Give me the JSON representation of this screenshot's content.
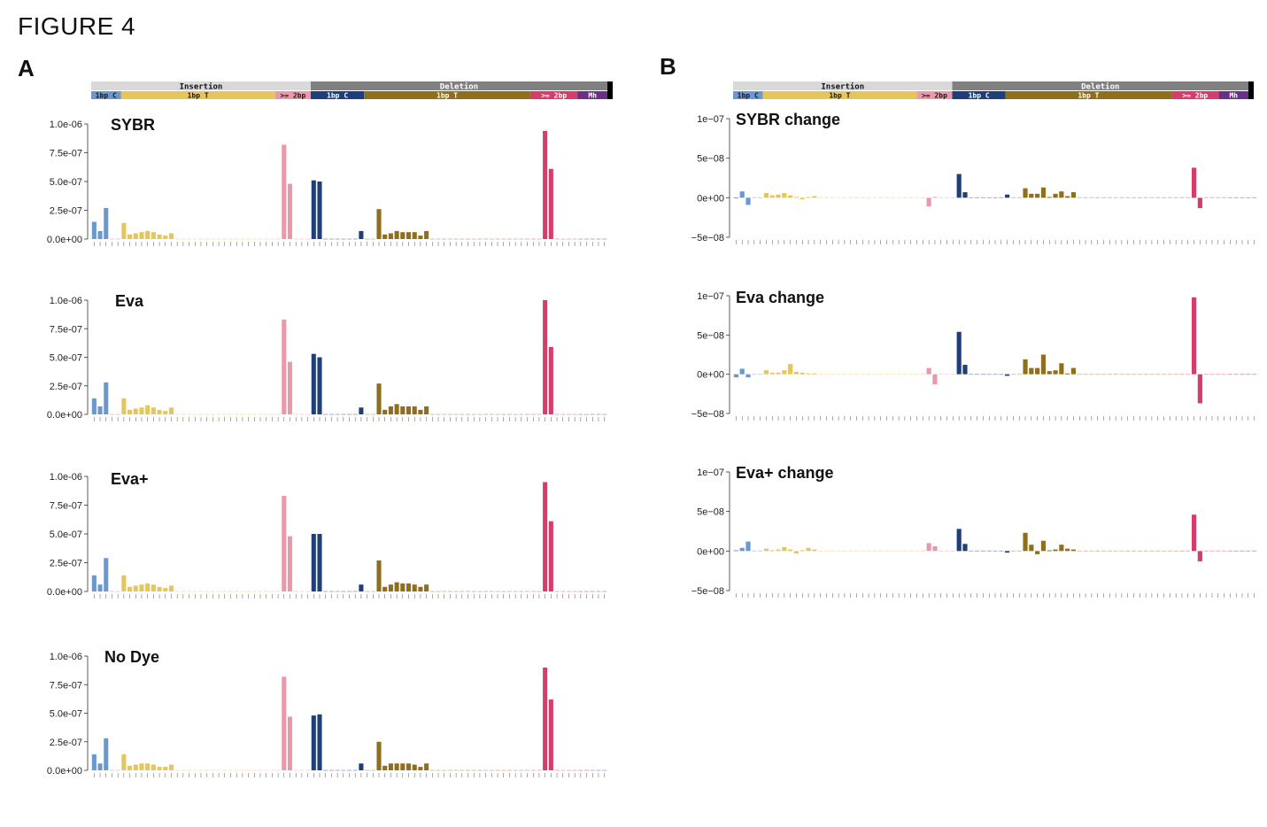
{
  "figure_title": "FIGURE 4",
  "panels": [
    "A",
    "B"
  ],
  "header": {
    "groups": [
      {
        "label": "Insertion",
        "color": "#d9d9d9"
      },
      {
        "label": "Deletion",
        "color": "#808080"
      }
    ],
    "subgroups": [
      {
        "label": "1bp C",
        "color": "#6b98cf",
        "text_color": "#1a1a1a"
      },
      {
        "label": "1bp T",
        "color": "#e6c55b",
        "text_color": "#1a1a1a"
      },
      {
        "label": ">= 2bp",
        "color": "#e89aaa",
        "text_color": "#1a1a1a"
      },
      {
        "label": "1bp C",
        "color": "#1f3f7a",
        "text_color": "#ffffff"
      },
      {
        "label": "1bp T",
        "color": "#8f6e1c",
        "text_color": "#ffffff"
      },
      {
        "label": ">= 2bp",
        "color": "#d63d6b",
        "text_color": "#ffffff"
      },
      {
        "label": "Mh",
        "color": "#6a2f86",
        "text_color": "#ffffff"
      }
    ]
  },
  "colors": {
    "cat_1bp_C_ins": "#6b98cf",
    "cat_1bp_T_ins": "#e6c55b",
    "cat_2bp_ins": "#e89aaa",
    "cat_1bp_C_del": "#1f3f7a",
    "cat_1bp_T_del": "#8f6e1c",
    "cat_2bp_del": "#d63d6b",
    "cat_mh": "#6a2f86",
    "axis": "#333333"
  },
  "chart_data": [
    {
      "type": "bar",
      "panel": "A",
      "title": "SYBR",
      "yticks": [
        "0.0e+00",
        "2.5e-07",
        "5.0e-07",
        "7.5e-07",
        "1.0e-06"
      ],
      "ylim": [
        0,
        1e-06
      ],
      "values": [
        1.5e-07,
        7e-08,
        2.7e-07,
        0,
        0,
        1.4e-07,
        4e-08,
        5e-08,
        6e-08,
        7e-08,
        6e-08,
        4e-08,
        3e-08,
        5e-08,
        0,
        0,
        0,
        0,
        0,
        0,
        0,
        0,
        0,
        0,
        0,
        0,
        0,
        0,
        0,
        0,
        0,
        0,
        8.2e-07,
        4.8e-07,
        0,
        0,
        0,
        5.1e-07,
        5e-07,
        0,
        0,
        0,
        0,
        0,
        0,
        7e-08,
        0,
        0,
        2.6e-07,
        4e-08,
        5e-08,
        7e-08,
        6e-08,
        6e-08,
        6e-08,
        3e-08,
        7e-08,
        0,
        0,
        0,
        0,
        0,
        0,
        0,
        0,
        0,
        0,
        0,
        0,
        0,
        0,
        0,
        0,
        0,
        0,
        0,
        9.4e-07,
        6.1e-07,
        0,
        0,
        0,
        0,
        0,
        0,
        0,
        0,
        0,
        0,
        0
      ]
    },
    {
      "type": "bar",
      "panel": "A",
      "title": "Eva",
      "yticks": [
        "0.0e+00",
        "2.5e-07",
        "5.0e-07",
        "7.5e-07",
        "1.0e-06"
      ],
      "ylim": [
        0,
        1e-06
      ],
      "values": [
        1.4e-07,
        7e-08,
        2.8e-07,
        0,
        0,
        1.4e-07,
        4e-08,
        5e-08,
        6e-08,
        8e-08,
        6e-08,
        4e-08,
        3e-08,
        6e-08,
        0,
        0,
        0,
        0,
        0,
        0,
        0,
        0,
        0,
        0,
        0,
        0,
        0,
        0,
        0,
        0,
        0,
        0,
        8.3e-07,
        4.6e-07,
        0,
        0,
        0,
        5.3e-07,
        5e-07,
        0,
        0,
        0,
        0,
        0,
        0,
        6e-08,
        0,
        0,
        2.7e-07,
        4e-08,
        7e-08,
        9e-08,
        7e-08,
        7e-08,
        7e-08,
        4e-08,
        7e-08,
        0,
        0,
        0,
        0,
        0,
        0,
        0,
        0,
        0,
        0,
        0,
        0,
        0,
        0,
        0,
        0,
        0,
        0,
        0,
        1e-06,
        5.9e-07,
        0,
        0,
        0,
        0,
        0,
        0,
        0,
        0,
        0,
        0,
        0
      ]
    },
    {
      "type": "bar",
      "panel": "A",
      "title": "Eva+",
      "yticks": [
        "0.0e+00",
        "2.5e-07",
        "5.0e-07",
        "7.5e-07",
        "1.0e-06"
      ],
      "ylim": [
        0,
        1e-06
      ],
      "values": [
        1.4e-07,
        6e-08,
        2.9e-07,
        0,
        0,
        1.4e-07,
        4e-08,
        5e-08,
        6e-08,
        7e-08,
        6e-08,
        4e-08,
        3e-08,
        5e-08,
        0,
        0,
        0,
        0,
        0,
        0,
        0,
        0,
        0,
        0,
        0,
        0,
        0,
        0,
        0,
        0,
        0,
        0,
        8.3e-07,
        4.8e-07,
        0,
        0,
        0,
        5e-07,
        5e-07,
        0,
        0,
        0,
        0,
        0,
        0,
        6e-08,
        0,
        0,
        2.7e-07,
        4e-08,
        6e-08,
        8e-08,
        7e-08,
        7e-08,
        6e-08,
        4e-08,
        6e-08,
        0,
        0,
        0,
        0,
        0,
        0,
        0,
        0,
        0,
        0,
        0,
        0,
        0,
        0,
        0,
        0,
        0,
        0,
        0,
        9.5e-07,
        6.1e-07,
        0,
        0,
        0,
        0,
        0,
        0,
        0,
        0,
        0,
        0,
        0
      ]
    },
    {
      "type": "bar",
      "panel": "A",
      "title": "No Dye",
      "yticks": [
        "0.0e+00",
        "2.5e-07",
        "5.0e-07",
        "7.5e-07",
        "1.0e-06"
      ],
      "ylim": [
        0,
        1e-06
      ],
      "values": [
        1.4e-07,
        6e-08,
        2.8e-07,
        0,
        0,
        1.4e-07,
        4e-08,
        5e-08,
        6e-08,
        6e-08,
        5e-08,
        3e-08,
        3e-08,
        5e-08,
        0,
        0,
        0,
        0,
        0,
        0,
        0,
        0,
        0,
        0,
        0,
        0,
        0,
        0,
        0,
        0,
        0,
        0,
        8.2e-07,
        4.7e-07,
        0,
        0,
        0,
        4.8e-07,
        4.9e-07,
        0,
        0,
        0,
        0,
        0,
        0,
        6e-08,
        0,
        0,
        2.5e-07,
        4e-08,
        6e-08,
        6e-08,
        6e-08,
        6e-08,
        5e-08,
        3e-08,
        6e-08,
        0,
        0,
        0,
        0,
        0,
        0,
        0,
        0,
        0,
        0,
        0,
        0,
        0,
        0,
        0,
        0,
        0,
        0,
        0,
        9e-07,
        6.2e-07,
        0,
        0,
        0,
        0,
        0,
        0,
        0,
        0,
        0,
        0,
        0
      ]
    },
    {
      "type": "bar",
      "panel": "B",
      "title": "SYBR change",
      "yticks": [
        "−5e−08",
        "0e+00",
        "5e−08",
        "1e−07"
      ],
      "ylim": [
        -5e-08,
        1e-07
      ],
      "values": [
        5e-10,
        8e-09,
        -9e-09,
        0,
        0,
        6e-09,
        3e-09,
        4e-09,
        6e-09,
        3e-09,
        1e-09,
        -2e-09,
        1e-09,
        2e-09,
        0,
        0,
        0,
        0,
        0,
        0,
        0,
        0,
        0,
        0,
        0,
        0,
        0,
        0,
        0,
        0,
        0,
        0,
        -1.1e-08,
        1e-09,
        0,
        0,
        0,
        3e-08,
        7e-09,
        0,
        0,
        0,
        0,
        0,
        0,
        4e-09,
        0,
        0,
        1.2e-08,
        5e-09,
        5e-09,
        1.3e-08,
        1e-09,
        5e-09,
        8e-09,
        2e-09,
        7e-09,
        0,
        0,
        0,
        0,
        0,
        0,
        0,
        0,
        0,
        0,
        0,
        0,
        0,
        0,
        0,
        0,
        0,
        0,
        0,
        3.8e-08,
        -1.3e-08,
        0,
        0,
        0,
        0,
        0,
        0,
        0,
        0,
        0,
        0,
        0
      ]
    },
    {
      "type": "bar",
      "panel": "B",
      "title": "Eva change",
      "yticks": [
        "−5e−08",
        "0e+00",
        "5e−08",
        "1e−07"
      ],
      "ylim": [
        -5e-08,
        1e-07
      ],
      "values": [
        -4e-09,
        7e-09,
        -4e-09,
        0,
        0,
        5e-09,
        2e-09,
        2e-09,
        5e-09,
        1.3e-08,
        3e-09,
        2e-09,
        1e-09,
        1e-09,
        0,
        0,
        0,
        0,
        0,
        0,
        0,
        0,
        0,
        0,
        0,
        0,
        0,
        0,
        0,
        0,
        0,
        0,
        8e-09,
        -1.3e-08,
        0,
        0,
        0,
        5.4e-08,
        1.2e-08,
        0,
        0,
        0,
        0,
        0,
        0,
        -2e-09,
        0,
        0,
        1.9e-08,
        8e-09,
        8e-09,
        2.5e-08,
        4e-09,
        5e-09,
        1.4e-08,
        1e-09,
        8e-09,
        0,
        0,
        0,
        0,
        0,
        0,
        0,
        0,
        0,
        0,
        0,
        0,
        0,
        0,
        0,
        0,
        0,
        0,
        0,
        9.8e-08,
        -3.7e-08,
        0,
        0,
        0,
        0,
        0,
        0,
        0,
        0,
        0,
        0,
        0
      ]
    },
    {
      "type": "bar",
      "panel": "B",
      "title": "Eva+ change",
      "yticks": [
        "−5e−08",
        "0e+00",
        "5e−08",
        "1e−07"
      ],
      "ylim": [
        -5e-08,
        1e-07
      ],
      "values": [
        1e-09,
        4e-09,
        1.2e-08,
        0,
        0,
        3e-09,
        1e-09,
        2e-09,
        5e-09,
        2e-09,
        -3e-09,
        1e-09,
        4e-09,
        2e-09,
        0,
        0,
        0,
        0,
        0,
        0,
        0,
        0,
        0,
        0,
        0,
        0,
        0,
        0,
        0,
        0,
        0,
        0,
        1e-08,
        6e-09,
        0,
        0,
        0,
        2.8e-08,
        9e-09,
        0,
        0,
        0,
        0,
        0,
        0,
        -2e-09,
        0,
        0,
        2.3e-08,
        8e-09,
        -4e-09,
        1.3e-08,
        1e-09,
        2e-09,
        8e-09,
        3e-09,
        2e-09,
        0,
        0,
        0,
        0,
        0,
        0,
        0,
        0,
        0,
        0,
        0,
        0,
        0,
        0,
        0,
        0,
        0,
        0,
        0,
        4.6e-08,
        -1.3e-08,
        0,
        0,
        0,
        0,
        0,
        0,
        0,
        0,
        0,
        0,
        0
      ]
    }
  ],
  "category_colors": [
    "cat_1bp_C_ins",
    "cat_1bp_C_ins",
    "cat_1bp_C_ins",
    "cat_1bp_C_ins",
    "cat_1bp_C_ins",
    "cat_1bp_T_ins",
    "cat_1bp_T_ins",
    "cat_1bp_T_ins",
    "cat_1bp_T_ins",
    "cat_1bp_T_ins",
    "cat_1bp_T_ins",
    "cat_1bp_T_ins",
    "cat_1bp_T_ins",
    "cat_1bp_T_ins",
    "cat_1bp_T_ins",
    "cat_1bp_T_ins",
    "cat_1bp_T_ins",
    "cat_1bp_T_ins",
    "cat_1bp_T_ins",
    "cat_1bp_T_ins",
    "cat_1bp_T_ins",
    "cat_1bp_T_ins",
    "cat_1bp_T_ins",
    "cat_1bp_T_ins",
    "cat_1bp_T_ins",
    "cat_1bp_T_ins",
    "cat_1bp_T_ins",
    "cat_1bp_T_ins",
    "cat_1bp_T_ins",
    "cat_1bp_T_ins",
    "cat_1bp_T_ins",
    "cat_2bp_ins",
    "cat_2bp_ins",
    "cat_2bp_ins",
    "cat_2bp_ins",
    "cat_2bp_ins",
    "cat_2bp_ins",
    "cat_1bp_C_del",
    "cat_1bp_C_del",
    "cat_1bp_C_del",
    "cat_1bp_C_del",
    "cat_1bp_C_del",
    "cat_1bp_C_del",
    "cat_1bp_C_del",
    "cat_1bp_C_del",
    "cat_1bp_C_del",
    "cat_1bp_T_del",
    "cat_1bp_T_del",
    "cat_1bp_T_del",
    "cat_1bp_T_del",
    "cat_1bp_T_del",
    "cat_1bp_T_del",
    "cat_1bp_T_del",
    "cat_1bp_T_del",
    "cat_1bp_T_del",
    "cat_1bp_T_del",
    "cat_1bp_T_del",
    "cat_1bp_T_del",
    "cat_1bp_T_del",
    "cat_1bp_T_del",
    "cat_1bp_T_del",
    "cat_1bp_T_del",
    "cat_1bp_T_del",
    "cat_1bp_T_del",
    "cat_1bp_T_del",
    "cat_1bp_T_del",
    "cat_1bp_T_del",
    "cat_1bp_T_del",
    "cat_1bp_T_del",
    "cat_1bp_T_del",
    "cat_1bp_T_del",
    "cat_1bp_T_del",
    "cat_1bp_T_del",
    "cat_1bp_T_del",
    "cat_2bp_del",
    "cat_2bp_del",
    "cat_2bp_del",
    "cat_2bp_del",
    "cat_2bp_del",
    "cat_2bp_del",
    "cat_2bp_del",
    "cat_2bp_del",
    "cat_mh",
    "cat_mh",
    "cat_mh",
    "cat_mh",
    "cat_mh"
  ]
}
